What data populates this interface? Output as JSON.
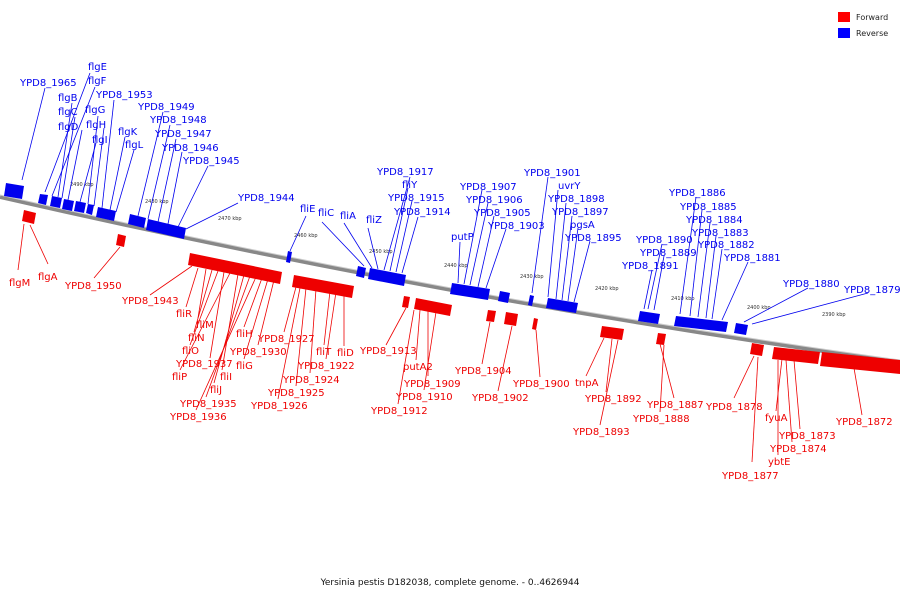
{
  "legend": {
    "forward_label": "Forward",
    "reverse_label": "Reverse",
    "forward_color": "#ff0000",
    "reverse_color": "#0000ff"
  },
  "caption": "Yersinia pestis D182038, complete genome. - 0..4626944",
  "ticks": [
    "2490 kbp",
    "2480 kbp",
    "2470 kbp",
    "2460 kbp",
    "2450 kbp",
    "2440 kbp",
    "2430 kbp",
    "2420 kbp",
    "2410 kbp",
    "2400 kbp",
    "2390 kbp"
  ],
  "reverse_labels": [
    "YPD8_1965",
    "flgB",
    "flgC",
    "flgD",
    "flgE",
    "flgF",
    "flgG",
    "flgH",
    "flgI",
    "flgK",
    "flgL",
    "YPD8_1953",
    "YPD8_1949",
    "YPD8_1948",
    "YPD8_1947",
    "YPD8_1946",
    "YPD8_1945",
    "YPD8_1944",
    "fliE",
    "fliC",
    "fliA",
    "fliZ",
    "YPD8_1917",
    "fliY",
    "YPD8_1915",
    "YPD8_1914",
    "putP",
    "YPD8_1907",
    "YPD8_1906",
    "YPD8_1905",
    "YPD8_1903",
    "YPD8_1901",
    "uvrY",
    "YPD8_1898",
    "YPD8_1897",
    "pgsA",
    "YPD8_1895",
    "YPD8_1890",
    "YPD8_1889",
    "YPD8_1891",
    "YPD8_1886",
    "YPD8_1885",
    "YPD8_1884",
    "YPD8_1883",
    "YPD8_1882",
    "YPD8_1881",
    "YPD8_1880",
    "YPD8_1879"
  ],
  "forward_labels": [
    "flgM",
    "flgA",
    "YPD8_1950",
    "YPD8_1943",
    "fliR",
    "fliM",
    "fliN",
    "fliO",
    "YPD8_1937",
    "fliP",
    "fliI",
    "fliJ",
    "YPD8_1935",
    "YPD8_1936",
    "fliH",
    "fliG",
    "YPD8_1930",
    "YPD8_1927",
    "YPD8_1925",
    "YPD8_1924",
    "YPD8_1926",
    "fliT",
    "fliD",
    "YPD8_1922",
    "YPD8_1913",
    "putA2",
    "YPD8_1909",
    "YPD8_1910",
    "YPD8_1912",
    "YPD8_1904",
    "YPD8_1902",
    "YPD8_1900",
    "tnpA",
    "YPD8_1892",
    "YPD8_1893",
    "YPD8_1887",
    "YPD8_1888",
    "YPD8_1878",
    "YPD8_1877",
    "fyuA",
    "YPD8_1873",
    "YPD8_1874",
    "ybtE",
    "YPD8_1872"
  ]
}
